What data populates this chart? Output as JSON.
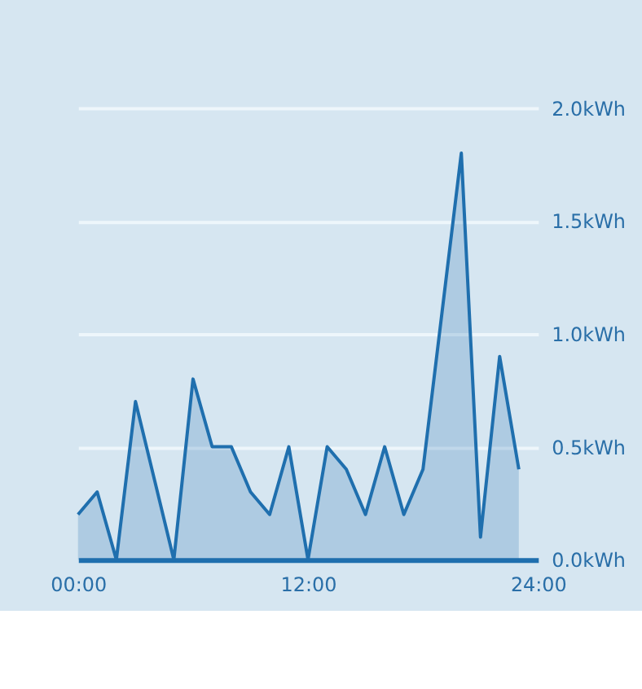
{
  "chart_data": {
    "type": "area",
    "x": [
      0,
      1,
      2,
      3,
      4,
      5,
      6,
      7,
      8,
      9,
      10,
      11,
      12,
      13,
      14,
      15,
      16,
      17,
      18,
      19,
      20,
      21,
      22,
      23
    ],
    "series": [
      {
        "color": "#1f6fae",
        "values": [
          0.2,
          0.3,
          0,
          0.7,
          0.35,
          0,
          0.8,
          0.5,
          0.5,
          0.3,
          0.2,
          0.5,
          0,
          0.5,
          0.4,
          0.2,
          0.5,
          0.2,
          0.4,
          1.1,
          1.8,
          0.1,
          0.9,
          0.4
        ]
      }
    ],
    "xlim": [
      0,
      24
    ],
    "xticks": [
      {
        "value": 0,
        "label": "00:00"
      },
      {
        "value": 12,
        "label": "12:00"
      },
      {
        "value": 24,
        "label": "24:00"
      }
    ],
    "ylim": [
      0,
      2
    ],
    "yticks": [
      {
        "value": 0,
        "label": "0.0kWh"
      },
      {
        "value": 0.5,
        "label": "0.5kWh"
      },
      {
        "value": 1,
        "label": "1.0kWh"
      },
      {
        "value": 1.5,
        "label": "1.5kWh"
      },
      {
        "value": 2,
        "label": "2.0kWh"
      }
    ],
    "grid": "y",
    "marker": "none",
    "line_style": "solid"
  }
}
